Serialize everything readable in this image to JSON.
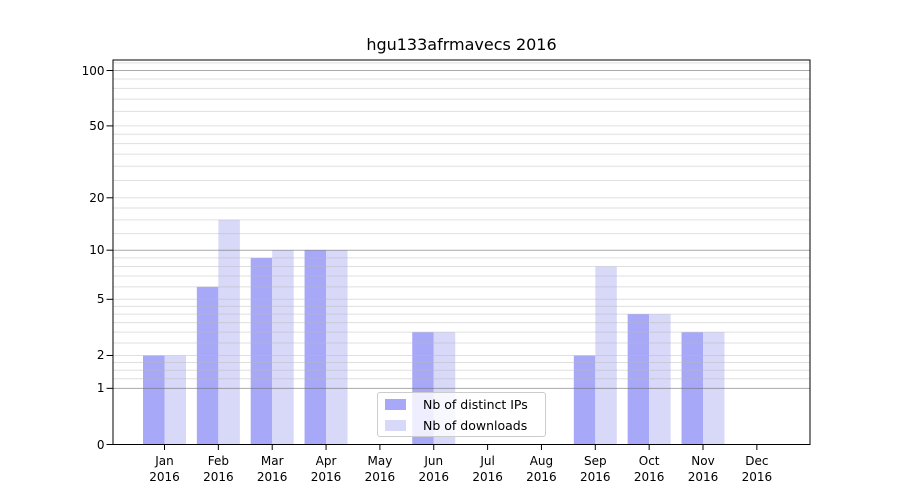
{
  "window": {
    "background": "#ffffff"
  },
  "chart_data": {
    "type": "bar",
    "title": "hgu133afrmavecs 2016",
    "xlabel": "",
    "ylabel": "",
    "year_line": "2016",
    "categories": [
      "Jan",
      "Feb",
      "Mar",
      "Apr",
      "May",
      "Jun",
      "Jul",
      "Aug",
      "Sep",
      "Oct",
      "Nov",
      "Dec"
    ],
    "series": [
      {
        "name": "Nb of distinct IPs",
        "color": "#a8a8f8",
        "values": [
          2,
          6,
          9,
          10,
          0,
          3,
          0,
          0,
          2,
          4,
          3,
          0
        ]
      },
      {
        "name": "Nb of downloads",
        "color": "#d8d8f8",
        "values": [
          2,
          15,
          10,
          10,
          0,
          3,
          0,
          0,
          8,
          4,
          3,
          0
        ]
      }
    ],
    "y_axis": {
      "scale": "log10(1+x)",
      "ylim": [
        0,
        114
      ],
      "major_ticks": [
        0,
        1,
        2,
        5,
        10,
        20,
        50,
        100
      ],
      "dark_gridlines": [
        1,
        10,
        100
      ],
      "minor_gridlines": [
        1.25,
        1.5,
        1.75,
        2,
        2.5,
        3,
        3.5,
        4,
        4.5,
        5,
        6,
        7,
        8,
        9,
        12.5,
        15,
        17.5,
        20,
        25,
        30,
        35,
        40,
        45,
        50,
        60,
        70,
        80,
        90,
        110
      ]
    },
    "legend": {
      "position": "lower center",
      "entries": [
        "Nb of distinct IPs",
        "Nb of downloads"
      ]
    },
    "grid": true
  },
  "colors": {
    "spine": "#000000",
    "major_grid": "rgba(100,100,100,0.55)",
    "minor_grid": "rgba(185,185,185,0.45)",
    "text": "#000000",
    "legend_border": "#cccccc",
    "legend_bg": "rgba(255,255,255,0.8)"
  }
}
